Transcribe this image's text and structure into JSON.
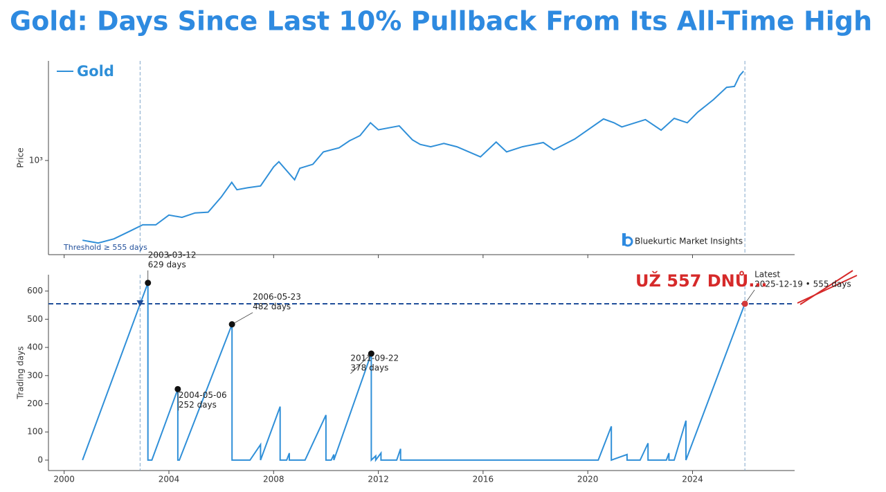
{
  "title": "Gold: Days Since Last 10% Pullback From Its All-Time High",
  "chart_data": [
    {
      "type": "line",
      "ylabel": "Price",
      "log_scale": true,
      "legend": "upper left",
      "xlim": [
        1999.4,
        2027.9
      ],
      "ylim": [
        215,
        5080
      ],
      "yticks": [
        {
          "value": 1000,
          "label": "10³"
        }
      ],
      "annotation": "Threshold ≥ 555 days",
      "brand": "Bluekurtic Market Insights",
      "x": [
        2000.7,
        2001.3,
        2001.9,
        2002.5,
        2003.0,
        2003.5,
        2004.0,
        2004.5,
        2005.0,
        2005.5,
        2006.0,
        2006.4,
        2006.6,
        2007.0,
        2007.5,
        2008.0,
        2008.2,
        2008.8,
        2009.0,
        2009.5,
        2009.9,
        2010.5,
        2010.9,
        2011.3,
        2011.7,
        2012.0,
        2012.8,
        2013.3,
        2013.6,
        2014.0,
        2014.5,
        2015.0,
        2015.9,
        2016.5,
        2016.9,
        2017.5,
        2018.3,
        2018.7,
        2019.5,
        2020.6,
        2021.0,
        2021.3,
        2022.2,
        2022.8,
        2023.3,
        2023.8,
        2024.2,
        2024.8,
        2025.3,
        2025.6,
        2025.8,
        2025.95
      ],
      "series": [
        {
          "name": "Gold",
          "color": "#2f8fd8",
          "values": [
            272,
            260,
            278,
            315,
            350,
            350,
            410,
            395,
            425,
            430,
            550,
            700,
            620,
            640,
            660,
            900,
            980,
            730,
            880,
            940,
            1150,
            1230,
            1380,
            1500,
            1850,
            1650,
            1760,
            1400,
            1300,
            1250,
            1320,
            1250,
            1060,
            1350,
            1150,
            1250,
            1340,
            1190,
            1420,
            1970,
            1850,
            1730,
            1950,
            1640,
            1990,
            1850,
            2200,
            2700,
            3300,
            3350,
            4000,
            4300
          ]
        }
      ]
    },
    {
      "type": "line",
      "ylabel": "Trading days",
      "xlim": [
        1999.4,
        2027.9
      ],
      "ylim": [
        -37,
        658
      ],
      "xticks": [
        2000,
        2004,
        2008,
        2012,
        2016,
        2020,
        2024
      ],
      "yticks": [
        0,
        100,
        200,
        300,
        400,
        500,
        600
      ],
      "threshold": 555,
      "threshold_color": "#1f4e9a",
      "vlines": [
        2002.9,
        2026.0
      ],
      "crossing": {
        "x": 2002.9,
        "y": 555
      },
      "x": [
        2000.7,
        2003.2,
        2003.2,
        2003.35,
        2004.34,
        2004.34,
        2004.4,
        2006.41,
        2006.41,
        2007.1,
        2007.5,
        2007.5,
        2008.25,
        2008.25,
        2008.5,
        2008.6,
        2008.6,
        2009.2,
        2010.0,
        2010.0,
        2010.2,
        2010.3,
        2010.3,
        2011.73,
        2011.73,
        2011.9,
        2011.9,
        2012.1,
        2012.1,
        2012.7,
        2012.85,
        2012.85,
        2020.4,
        2020.9,
        2020.9,
        2021.5,
        2021.5,
        2022.0,
        2022.3,
        2022.3,
        2023.0,
        2023.1,
        2023.1,
        2023.3,
        2023.75,
        2023.75,
        2026.0
      ],
      "series": [
        {
          "name": "Trading days",
          "color": "#2f8fd8",
          "values": [
            0,
            629,
            0,
            0,
            252,
            0,
            0,
            482,
            0,
            0,
            55,
            0,
            190,
            0,
            0,
            25,
            0,
            0,
            160,
            0,
            0,
            20,
            0,
            378,
            0,
            15,
            0,
            25,
            0,
            0,
            40,
            0,
            0,
            120,
            0,
            20,
            0,
            0,
            60,
            0,
            0,
            25,
            0,
            0,
            140,
            0,
            555
          ]
        }
      ],
      "annotations": [
        {
          "x": 2003.2,
          "y": 629,
          "lines": [
            "2003-03-12",
            "629 days"
          ]
        },
        {
          "x": 2004.34,
          "y": 252,
          "lines": [
            "2004-05-06",
            "252 days"
          ]
        },
        {
          "x": 2006.41,
          "y": 482,
          "lines": [
            "2006-05-23",
            "482 days"
          ]
        },
        {
          "x": 2011.73,
          "y": 378,
          "lines": [
            "2011-09-22",
            "378 days"
          ]
        },
        {
          "x": 2026.0,
          "y": 555,
          "lines": [
            "Latest",
            "2025-12-19 • 555 days"
          ],
          "color": "#d33a3a"
        }
      ],
      "overlay_text": "UŽ 557 DNŮ...",
      "overlay_color": "#d62a2a"
    }
  ]
}
